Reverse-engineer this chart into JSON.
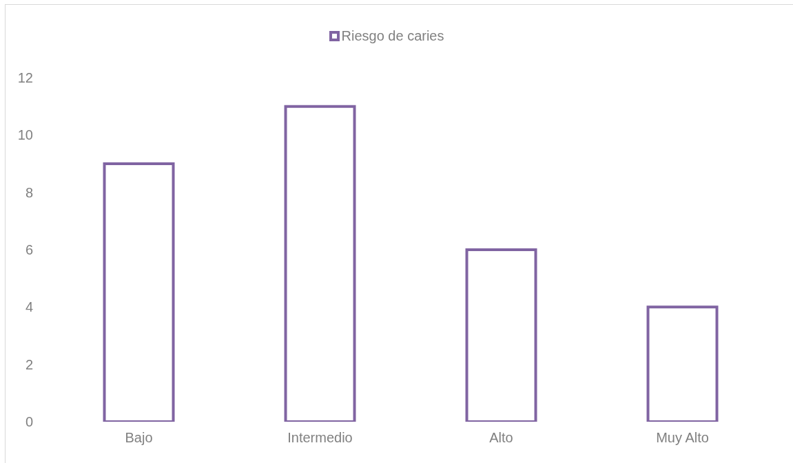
{
  "chart_data": {
    "type": "bar",
    "categories": [
      "Bajo",
      "Intermedio",
      "Alto",
      "Muy Alto"
    ],
    "series": [
      {
        "name": "Riesgo de caries",
        "color": "#8064a2",
        "values": [
          9,
          11,
          6,
          4
        ]
      }
    ],
    "ylim": [
      0,
      12
    ],
    "yticks": [
      0,
      2,
      4,
      6,
      8,
      10,
      12
    ],
    "legend": "top"
  }
}
